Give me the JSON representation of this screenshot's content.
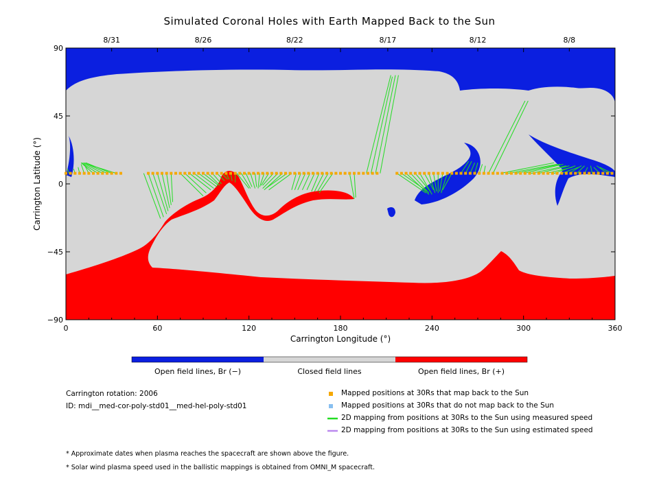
{
  "title": "Simulated Coronal Holes with Earth Mapped Back to the Sun",
  "chart_data": {
    "type": "map",
    "xlabel": "Carrington Longitude (°)",
    "ylabel": "Carrington Latitude (°)",
    "xlim": [
      0,
      360
    ],
    "ylim": [
      -90,
      90
    ],
    "xticks": [
      0,
      60,
      120,
      180,
      240,
      300,
      360
    ],
    "yticks": [
      -90,
      -45,
      0,
      45,
      90
    ],
    "top_axis_dates": [
      {
        "label": "8/31",
        "lon": 30
      },
      {
        "label": "8/26",
        "lon": 90
      },
      {
        "label": "8/22",
        "lon": 150
      },
      {
        "label": "8/17",
        "lon": 211
      },
      {
        "label": "8/12",
        "lon": 270
      },
      {
        "label": "8/8",
        "lon": 330
      }
    ],
    "colorbar": [
      {
        "label": "Open field lines, Br (−)",
        "color": "#0b1fe0"
      },
      {
        "label": "Closed field lines",
        "color": "#d6d6d6"
      },
      {
        "label": "Open field lines, Br (+)",
        "color": "#ff0000"
      }
    ],
    "mapped_latitude": 7,
    "mapped_points_lon": [
      0,
      3,
      6,
      9,
      12,
      15,
      18,
      21,
      24,
      27,
      30,
      33,
      36,
      54,
      57,
      60,
      63,
      66,
      69,
      72,
      75,
      78,
      81,
      84,
      87,
      90,
      93,
      96,
      99,
      102,
      105,
      108,
      111,
      114,
      117,
      120,
      123,
      126,
      129,
      132,
      135,
      138,
      141,
      144,
      147,
      150,
      153,
      156,
      159,
      162,
      165,
      168,
      171,
      174,
      177,
      180,
      183,
      186,
      189,
      192,
      195,
      198,
      201,
      204,
      217,
      220,
      223,
      226,
      229,
      232,
      235,
      238,
      241,
      244,
      247,
      250,
      253,
      256,
      259,
      262,
      265,
      268,
      271,
      274,
      277,
      280,
      283,
      286,
      289,
      292,
      295,
      298,
      301,
      304,
      307,
      310,
      313,
      316,
      319,
      322,
      325,
      328,
      331,
      334,
      337,
      340,
      343,
      346,
      349,
      352,
      355,
      358
    ],
    "unmapped_points_lon": [],
    "mapping_lines_measured": [
      [
        [
          2,
          7
        ],
        [
          1,
          10
        ]
      ],
      [
        [
          6,
          7
        ],
        [
          5,
          10
        ]
      ],
      [
        [
          9,
          7
        ],
        [
          8,
          11
        ]
      ],
      [
        [
          12,
          7
        ],
        [
          10,
          13
        ]
      ],
      [
        [
          15,
          7
        ],
        [
          12,
          13
        ]
      ],
      [
        [
          18,
          7
        ],
        [
          10,
          14
        ]
      ],
      [
        [
          21,
          7
        ],
        [
          10,
          14
        ]
      ],
      [
        [
          24,
          7
        ],
        [
          11,
          14
        ]
      ],
      [
        [
          27,
          7
        ],
        [
          12,
          14
        ]
      ],
      [
        [
          30,
          7
        ],
        [
          13,
          14
        ]
      ],
      [
        [
          33,
          7
        ],
        [
          14,
          13
        ]
      ],
      [
        [
          51,
          7
        ],
        [
          62,
          -23
        ]
      ],
      [
        [
          54,
          7
        ],
        [
          64,
          -22
        ]
      ],
      [
        [
          57,
          7
        ],
        [
          66,
          -20
        ]
      ],
      [
        [
          60,
          7
        ],
        [
          67,
          -18
        ]
      ],
      [
        [
          63,
          7
        ],
        [
          68,
          -16
        ]
      ],
      [
        [
          66,
          7
        ],
        [
          69,
          -14
        ]
      ],
      [
        [
          69,
          7
        ],
        [
          70,
          -12
        ]
      ],
      [
        [
          75,
          7
        ],
        [
          90,
          -8
        ]
      ],
      [
        [
          78,
          7
        ],
        [
          92,
          -6
        ]
      ],
      [
        [
          81,
          7
        ],
        [
          95,
          -4
        ]
      ],
      [
        [
          84,
          7
        ],
        [
          97,
          -3
        ]
      ],
      [
        [
          87,
          7
        ],
        [
          99,
          -2
        ]
      ],
      [
        [
          90,
          7
        ],
        [
          100,
          -1
        ]
      ],
      [
        [
          93,
          7
        ],
        [
          101,
          -1
        ]
      ],
      [
        [
          96,
          7
        ],
        [
          102,
          0
        ]
      ],
      [
        [
          99,
          7
        ],
        [
          104,
          2
        ]
      ],
      [
        [
          102,
          7
        ],
        [
          106,
          3
        ]
      ],
      [
        [
          105,
          7
        ],
        [
          107,
          3
        ]
      ],
      [
        [
          108,
          7
        ],
        [
          109,
          2
        ]
      ],
      [
        [
          111,
          7
        ],
        [
          111,
          1
        ]
      ],
      [
        [
          112,
          7
        ],
        [
          120,
          -3
        ]
      ],
      [
        [
          115,
          7
        ],
        [
          121,
          -3
        ]
      ],
      [
        [
          118,
          7
        ],
        [
          122,
          -2
        ]
      ],
      [
        [
          121,
          7
        ],
        [
          124,
          -3
        ]
      ],
      [
        [
          124,
          7
        ],
        [
          125,
          -2
        ]
      ],
      [
        [
          127,
          7
        ],
        [
          126,
          -3
        ]
      ],
      [
        [
          130,
          7
        ],
        [
          127,
          -2
        ]
      ],
      [
        [
          133,
          7
        ],
        [
          128,
          -1
        ]
      ],
      [
        [
          136,
          7
        ],
        [
          129,
          -1
        ]
      ],
      [
        [
          139,
          7
        ],
        [
          129,
          -3
        ]
      ],
      [
        [
          142,
          7
        ],
        [
          130,
          -4
        ]
      ],
      [
        [
          145,
          7
        ],
        [
          131,
          -3
        ]
      ],
      [
        [
          148,
          7
        ],
        [
          133,
          -4
        ]
      ],
      [
        [
          151,
          7
        ],
        [
          148,
          -4
        ]
      ],
      [
        [
          154,
          7
        ],
        [
          150,
          -4
        ]
      ],
      [
        [
          157,
          7
        ],
        [
          152,
          -4
        ]
      ],
      [
        [
          160,
          7
        ],
        [
          155,
          -4
        ]
      ],
      [
        [
          163,
          7
        ],
        [
          158,
          -4
        ]
      ],
      [
        [
          166,
          7
        ],
        [
          161,
          -5
        ]
      ],
      [
        [
          169,
          7
        ],
        [
          163,
          -5
        ]
      ],
      [
        [
          172,
          7
        ],
        [
          165,
          -5
        ]
      ],
      [
        [
          175,
          7
        ],
        [
          166,
          -6
        ]
      ],
      [
        [
          186,
          7
        ],
        [
          189,
          -10
        ]
      ],
      [
        [
          189,
          7
        ],
        [
          190,
          -9
        ]
      ],
      [
        [
          197,
          7
        ],
        [
          213,
          72
        ]
      ],
      [
        [
          200,
          7
        ],
        [
          214,
          71
        ]
      ],
      [
        [
          203,
          7
        ],
        [
          216,
          72
        ]
      ],
      [
        [
          206,
          7
        ],
        [
          218,
          72
        ]
      ],
      [
        [
          217,
          7
        ],
        [
          236,
          -6
        ]
      ],
      [
        [
          220,
          7
        ],
        [
          237,
          -5
        ]
      ],
      [
        [
          223,
          7
        ],
        [
          238,
          -7
        ]
      ],
      [
        [
          226,
          7
        ],
        [
          238,
          -6
        ]
      ],
      [
        [
          229,
          7
        ],
        [
          239,
          -5
        ]
      ],
      [
        [
          232,
          7
        ],
        [
          240,
          -7
        ]
      ],
      [
        [
          235,
          7
        ],
        [
          241,
          -4
        ]
      ],
      [
        [
          238,
          7
        ],
        [
          242,
          -6
        ]
      ],
      [
        [
          241,
          7
        ],
        [
          243,
          -5
        ]
      ],
      [
        [
          244,
          7
        ],
        [
          244,
          -6
        ]
      ],
      [
        [
          247,
          7
        ],
        [
          245,
          -5
        ]
      ],
      [
        [
          250,
          7
        ],
        [
          246,
          -6
        ]
      ],
      [
        [
          253,
          7
        ],
        [
          247,
          -4
        ]
      ],
      [
        [
          259,
          7
        ],
        [
          264,
          15
        ]
      ],
      [
        [
          262,
          7
        ],
        [
          266,
          15
        ]
      ],
      [
        [
          265,
          7
        ],
        [
          268,
          14
        ]
      ],
      [
        [
          268,
          7
        ],
        [
          270,
          14
        ]
      ],
      [
        [
          271,
          7
        ],
        [
          273,
          13
        ]
      ],
      [
        [
          274,
          7
        ],
        [
          275,
          12
        ]
      ],
      [
        [
          277,
          7
        ],
        [
          301,
          55
        ]
      ],
      [
        [
          280,
          7
        ],
        [
          303,
          55
        ]
      ],
      [
        [
          285,
          7
        ],
        [
          320,
          14
        ]
      ],
      [
        [
          290,
          7
        ],
        [
          322,
          13
        ]
      ],
      [
        [
          295,
          7
        ],
        [
          324,
          13
        ]
      ],
      [
        [
          300,
          7
        ],
        [
          326,
          13
        ]
      ],
      [
        [
          305,
          7
        ],
        [
          328,
          12
        ]
      ],
      [
        [
          310,
          7
        ],
        [
          330,
          12
        ]
      ],
      [
        [
          315,
          7
        ],
        [
          332,
          11
        ]
      ],
      [
        [
          320,
          7
        ],
        [
          334,
          12
        ]
      ],
      [
        [
          325,
          7
        ],
        [
          336,
          11
        ]
      ],
      [
        [
          330,
          7
        ],
        [
          338,
          12
        ]
      ],
      [
        [
          335,
          7
        ],
        [
          340,
          12
        ]
      ],
      [
        [
          340,
          7
        ],
        [
          342,
          11
        ]
      ],
      [
        [
          345,
          7
        ],
        [
          344,
          12
        ]
      ],
      [
        [
          350,
          7
        ],
        [
          346,
          11
        ]
      ],
      [
        [
          355,
          7
        ],
        [
          348,
          12
        ]
      ],
      [
        [
          358,
          7
        ],
        [
          350,
          11
        ]
      ]
    ],
    "mapping_lines_estimated": []
  },
  "legend": {
    "mapped": "Mapped positions at 30Rs that map back to the Sun",
    "unmapped": "Mapped positions at 30Rs that do not map back to the Sun",
    "measured": "2D mapping from positions at 30Rs to the Sun using measured speed",
    "estimated": "2D mapping from positions at 30Rs to the Sun using estimated speed"
  },
  "colors": {
    "neg": "#0b1fe0",
    "closed": "#d6d6d6",
    "pos": "#ff0000",
    "mapped": "#f5a800",
    "unmapped": "#88bff0",
    "measured": "#22dd22",
    "estimated": "#bb88ee"
  },
  "info": {
    "rotation": "Carrington rotation: 2006",
    "id": "ID: mdi__med-cor-poly-std01__med-hel-poly-std01"
  },
  "footnotes": [
    "* Approximate dates when plasma reaches the spacecraft are shown above the figure.",
    "* Solar wind plasma speed used in the ballistic mappings is obtained from OMNI_M spacecraft."
  ]
}
